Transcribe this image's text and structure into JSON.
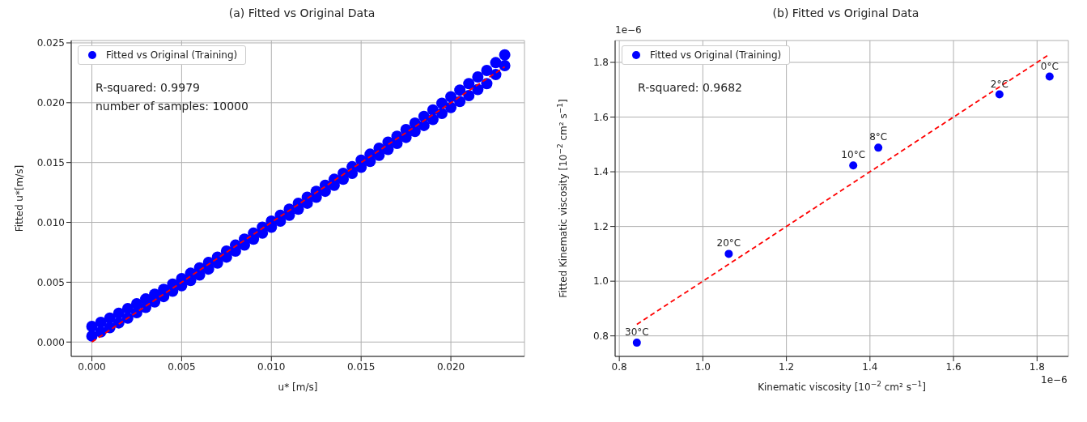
{
  "chart_data": [
    {
      "type": "scatter",
      "title": "(a) Fitted vs Original Data",
      "xlabel": "u* [m/s]",
      "ylabel": "Fitted u*[m/s]",
      "xlim": [
        -0.00115,
        0.0241
      ],
      "ylim": [
        -0.0012,
        0.0252
      ],
      "xticks": [
        {
          "value": 0,
          "label": "0.000"
        },
        {
          "value": 0.005,
          "label": "0.005"
        },
        {
          "value": 0.01,
          "label": "0.010"
        },
        {
          "value": 0.015,
          "label": "0.015"
        },
        {
          "value": 0.02,
          "label": "0.020"
        }
      ],
      "yticks": [
        {
          "value": 0,
          "label": "0.000"
        },
        {
          "value": 0.005,
          "label": "0.005"
        },
        {
          "value": 0.01,
          "label": "0.010"
        },
        {
          "value": 0.015,
          "label": "0.015"
        },
        {
          "value": 0.02,
          "label": "0.020"
        },
        {
          "value": 0.025,
          "label": "0.025"
        }
      ],
      "grid": true,
      "legend": "top left",
      "annotations": [
        "R-squared: 0.9979",
        "number of samples: 10000"
      ],
      "series": [
        {
          "name": "Fitted vs Original (Training)",
          "color": "#0000ff",
          "marker": "circle",
          "x": [
            0,
            0,
            0.0005,
            0.0005,
            0.001,
            0.001,
            0.0015,
            0.0015,
            0.002,
            0.002,
            0.0025,
            0.0025,
            0.003,
            0.003,
            0.0035,
            0.0035,
            0.004,
            0.004,
            0.0045,
            0.0045,
            0.005,
            0.005,
            0.0055,
            0.0055,
            0.006,
            0.006,
            0.0065,
            0.0065,
            0.007,
            0.007,
            0.0075,
            0.0075,
            0.008,
            0.008,
            0.0085,
            0.0085,
            0.009,
            0.009,
            0.0095,
            0.0095,
            0.01,
            0.01,
            0.0105,
            0.0105,
            0.011,
            0.011,
            0.0115,
            0.0115,
            0.012,
            0.012,
            0.0125,
            0.0125,
            0.013,
            0.013,
            0.0135,
            0.0135,
            0.014,
            0.014,
            0.0145,
            0.0145,
            0.015,
            0.015,
            0.0155,
            0.0155,
            0.016,
            0.016,
            0.0165,
            0.0165,
            0.017,
            0.017,
            0.0175,
            0.0175,
            0.018,
            0.018,
            0.0185,
            0.0185,
            0.019,
            0.019,
            0.0195,
            0.0195,
            0.02,
            0.02,
            0.0205,
            0.0205,
            0.021,
            0.021,
            0.0215,
            0.0215,
            0.022,
            0.022,
            0.0225,
            0.0225,
            0.023,
            0.023
          ],
          "values": [
            0.0013,
            0.0005,
            0.00165,
            0.00085,
            0.002,
            0.0012,
            0.0024,
            0.0016,
            0.0028,
            0.002,
            0.0032,
            0.00245,
            0.0036,
            0.0029,
            0.004,
            0.00335,
            0.0044,
            0.0038,
            0.00485,
            0.00425,
            0.0053,
            0.0047,
            0.00575,
            0.00515,
            0.0062,
            0.0056,
            0.00665,
            0.0061,
            0.0071,
            0.0066,
            0.0076,
            0.0071,
            0.0081,
            0.0076,
            0.0086,
            0.0081,
            0.0091,
            0.0086,
            0.0096,
            0.0091,
            0.0101,
            0.0096,
            0.0106,
            0.0101,
            0.0111,
            0.0106,
            0.0116,
            0.0111,
            0.0121,
            0.0116,
            0.0126,
            0.0121,
            0.0131,
            0.0126,
            0.0136,
            0.0131,
            0.0141,
            0.0136,
            0.01465,
            0.0141,
            0.0152,
            0.0146,
            0.0157,
            0.0151,
            0.0162,
            0.0156,
            0.0167,
            0.0161,
            0.0172,
            0.0166,
            0.01775,
            0.0171,
            0.0183,
            0.0176,
            0.01885,
            0.0181,
            0.0194,
            0.0186,
            0.01995,
            0.0191,
            0.0205,
            0.0196,
            0.02105,
            0.0201,
            0.0216,
            0.0206,
            0.02215,
            0.0211,
            0.0227,
            0.0216,
            0.02335,
            0.02235,
            0.024,
            0.0231
          ]
        },
        {
          "type": "line",
          "color": "#ff0000",
          "line_style": "dashed",
          "x": [
            0,
            0.023
          ],
          "values": [
            0,
            0.023
          ]
        }
      ]
    },
    {
      "type": "scatter",
      "title": "(b) Fitted vs Original Data",
      "xlabel": "Kinematic viscosity [10$^{−2}$ cm² s$^{−1}$]",
      "ylabel": "Fitted Kinematic viscosity [10$^{−2}$ cm² s$^{−1}$]",
      "xlim": [
        0.79,
        1.875
      ],
      "ylim": [
        0.725,
        1.88
      ],
      "xticks": [
        {
          "value": 0.8,
          "label": "0.8"
        },
        {
          "value": 1,
          "label": "1.0"
        },
        {
          "value": 1.2,
          "label": "1.2"
        },
        {
          "value": 1.4,
          "label": "1.4"
        },
        {
          "value": 1.6,
          "label": "1.6"
        },
        {
          "value": 1.8,
          "label": "1.8"
        }
      ],
      "yticks": [
        {
          "value": 0.8,
          "label": "0.8"
        },
        {
          "value": 1,
          "label": "1.0"
        },
        {
          "value": 1.2,
          "label": "1.2"
        },
        {
          "value": 1.4,
          "label": "1.4"
        },
        {
          "value": 1.6,
          "label": "1.6"
        },
        {
          "value": 1.8,
          "label": "1.8"
        }
      ],
      "grid": true,
      "legend": "top left",
      "annotations": [
        "R-squared: 0.9682",
        "1e−6",
        "1e−6",
        {
          "text": "30°C",
          "x": 0.842,
          "y": 0.775
        },
        {
          "text": "20°C",
          "x": 1.062,
          "y": 1.1
        },
        {
          "text": "10°C",
          "x": 1.36,
          "y": 1.423
        },
        {
          "text": "8°C",
          "x": 1.42,
          "y": 1.488
        },
        {
          "text": "2°C",
          "x": 1.71,
          "y": 1.683
        },
        {
          "text": "0°C",
          "x": 1.83,
          "y": 1.748
        }
      ],
      "series": [
        {
          "name": "Fitted vs Original (Training)",
          "color": "#0000ff",
          "marker": "circle",
          "x": [
            0.842,
            1.062,
            1.36,
            1.42,
            1.71,
            1.83
          ],
          "values": [
            0.775,
            1.1,
            1.423,
            1.488,
            1.683,
            1.748
          ]
        },
        {
          "type": "line",
          "color": "#ff0000",
          "line_style": "dashed",
          "x": [
            0.842,
            1.83
          ],
          "values": [
            0.842,
            1.83
          ]
        }
      ]
    }
  ]
}
